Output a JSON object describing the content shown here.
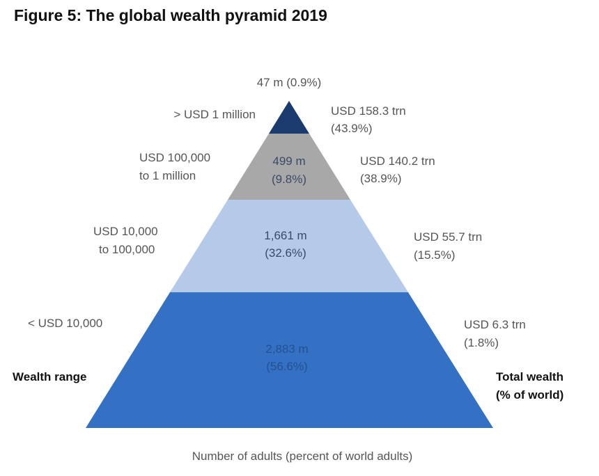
{
  "title": "Figure 5: The global wealth pyramid 2019",
  "colors": {
    "top": "#1b3b6f",
    "second": "#a8a8a8",
    "third": "#b5cae8",
    "bottom": "#3471c5",
    "inner_text_dark": "#3a4a66",
    "inner_text_bottom": "#25508f"
  },
  "chart_data": {
    "type": "pyramid",
    "tiers": [
      {
        "wealth_range": [
          "> USD 1 million"
        ],
        "adults": "47 m (0.9%)",
        "total_wealth": [
          "USD 158.3 trn",
          "(43.9%)"
        ]
      },
      {
        "wealth_range": [
          "USD 100,000",
          "to 1 million"
        ],
        "adults": [
          "499 m",
          "(9.8%)"
        ],
        "total_wealth": [
          "USD 140.2 trn",
          "(38.9%)"
        ]
      },
      {
        "wealth_range": [
          "USD 10,000",
          "to 100,000"
        ],
        "adults": [
          "1,661 m",
          "(32.6%)"
        ],
        "total_wealth": [
          "USD 55.7 trn",
          "(15.5%)"
        ]
      },
      {
        "wealth_range": [
          "< USD 10,000"
        ],
        "adults": [
          "2,883 m",
          "(56.6%)"
        ],
        "total_wealth": [
          "USD 6.3 trn",
          "(1.8%)"
        ]
      }
    ],
    "left_axis_label": "Wealth range",
    "right_axis_label": [
      "Total wealth",
      "(% of world)"
    ],
    "bottom_label": "Number of adults (percent of world adults)"
  }
}
